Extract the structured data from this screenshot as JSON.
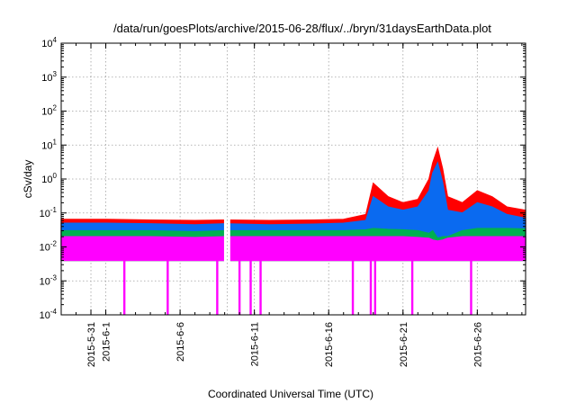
{
  "chart_data": {
    "type": "area",
    "title": "/data/run/goesPlots/archive/2015-06-28/flux/../bryn/31daysEarthData.plot",
    "xlabel": "Coordinated Universal Time (UTC)",
    "ylabel": "cSv/day",
    "yscale": "log",
    "ylim": [
      0.0001,
      10000
    ],
    "xlim": [
      "2015-05-29",
      "2015-06-29T06:00"
    ],
    "grid": true,
    "legend": "none",
    "y_ticks": [
      {
        "base": "10",
        "exp": "-4",
        "value": 0.0001
      },
      {
        "base": "10",
        "exp": "-3",
        "value": 0.001
      },
      {
        "base": "10",
        "exp": "-2",
        "value": 0.01
      },
      {
        "base": "10",
        "exp": "-1",
        "value": 0.1
      },
      {
        "base": "10",
        "exp": "0",
        "value": 1
      },
      {
        "base": "10",
        "exp": "1",
        "value": 10
      },
      {
        "base": "10",
        "exp": "2",
        "value": 100
      },
      {
        "base": "10",
        "exp": "3",
        "value": 1000
      },
      {
        "base": "10",
        "exp": "4",
        "value": 10000
      }
    ],
    "x_ticks": [
      "2015-5-31",
      "2015-6-1",
      "2015-6-6",
      "2015-6-11",
      "2015-6-16",
      "2015-6-21",
      "2015-6-26"
    ],
    "x_tick_dates": [
      "2015-05-31",
      "2015-06-01",
      "2015-06-06",
      "2015-06-11",
      "2015-06-16",
      "2015-06-21",
      "2015-06-26"
    ],
    "data_gaps": [
      [
        "2015-06-08T23:00",
        "2015-06-09T09:00"
      ]
    ],
    "x": [
      "2015-05-29",
      "2015-06-01",
      "2015-06-04",
      "2015-06-07",
      "2015-06-09",
      "2015-06-12",
      "2015-06-15",
      "2015-06-17",
      "2015-06-18T12:00",
      "2015-06-19",
      "2015-06-20",
      "2015-06-21",
      "2015-06-22",
      "2015-06-22T18:00",
      "2015-06-23",
      "2015-06-23T08:00",
      "2015-06-23T16:00",
      "2015-06-24",
      "2015-06-25",
      "2015-06-26",
      "2015-06-27",
      "2015-06-28",
      "2015-06-29T06:00"
    ],
    "series": [
      {
        "color": "#ff0000",
        "values": [
          0.065,
          0.065,
          0.062,
          0.06,
          0.062,
          0.06,
          0.062,
          0.065,
          0.09,
          0.75,
          0.3,
          0.2,
          0.25,
          1.0,
          3.0,
          8.0,
          2.0,
          0.3,
          0.2,
          0.45,
          0.3,
          0.15,
          0.12
        ]
      },
      {
        "color": "#0a6af0",
        "values": [
          0.05,
          0.05,
          0.048,
          0.045,
          0.048,
          0.045,
          0.047,
          0.05,
          0.06,
          0.3,
          0.15,
          0.12,
          0.15,
          0.45,
          1.5,
          3.0,
          0.8,
          0.12,
          0.1,
          0.2,
          0.15,
          0.09,
          0.07
        ]
      },
      {
        "color": "#00b050",
        "values": [
          0.03,
          0.03,
          0.03,
          0.028,
          0.03,
          0.03,
          0.03,
          0.03,
          0.032,
          0.035,
          0.033,
          0.032,
          0.03,
          0.025,
          0.03,
          0.018,
          0.02,
          0.02,
          0.03,
          0.035,
          0.035,
          0.035,
          0.034
        ]
      },
      {
        "color": "#ff00ff",
        "values": [
          0.02,
          0.02,
          0.02,
          0.019,
          0.02,
          0.02,
          0.02,
          0.02,
          0.02,
          0.02,
          0.02,
          0.02,
          0.019,
          0.018,
          0.016,
          0.015,
          0.016,
          0.018,
          0.02,
          0.02,
          0.02,
          0.02,
          0.02
        ]
      }
    ],
    "magenta_floor": 0.004,
    "dropouts": [
      "2015-06-02T06:00",
      "2015-06-05T04:00",
      "2015-06-08T12:00",
      "2015-06-10T00:00",
      "2015-06-10T18:00",
      "2015-06-11T10:00",
      "2015-06-17T15:00",
      "2015-06-18T20:00",
      "2015-06-19T03:00",
      "2015-06-21T15:00",
      "2015-06-25T14:00"
    ]
  }
}
